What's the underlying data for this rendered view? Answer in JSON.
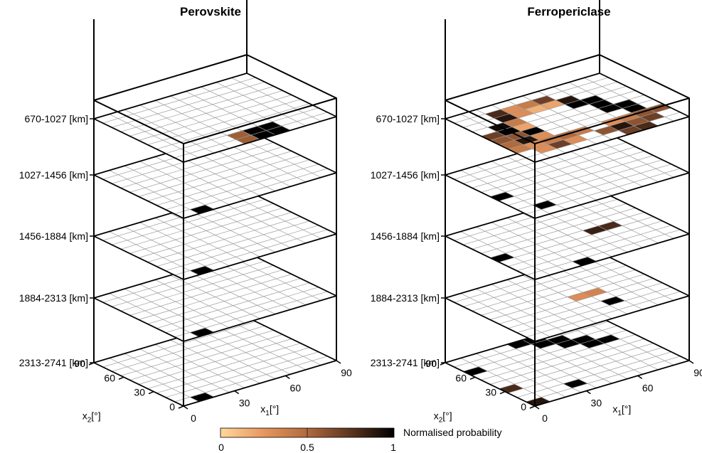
{
  "chart_data": [
    {
      "type": "heatmap",
      "title": "Perovskite",
      "xlabel": "x",
      "xlabel_sub": "1",
      "xlabel_unit": "[°]",
      "ylabel": "x",
      "ylabel_sub": "2",
      "ylabel_unit": "[°]",
      "x_ticks": [
        "0",
        "30",
        "60",
        "90"
      ],
      "y_ticks": [
        "0",
        "30",
        "60",
        "90"
      ],
      "grid_size": 10,
      "layers": [
        {
          "label": "670-1027 [km]",
          "cells": [
            [
              5,
              1,
              1.0
            ],
            [
              5,
              0,
              1.0
            ],
            [
              6,
              1,
              1.0
            ],
            [
              6,
              0,
              1.0
            ],
            [
              4,
              1,
              0.55
            ],
            [
              4,
              0,
              0.55
            ]
          ]
        },
        {
          "label": "1027-1456 [km]",
          "cells": [
            [
              1,
              0,
              1.0
            ]
          ]
        },
        {
          "label": "1456-1884 [km]",
          "cells": [
            [
              1,
              0,
              1.0
            ]
          ]
        },
        {
          "label": "1884-2313 [km]",
          "cells": [
            [
              1,
              0,
              1.0
            ]
          ]
        },
        {
          "label": "2313-2741 [km]",
          "cells": [
            [
              1,
              0,
              1.0
            ]
          ]
        }
      ]
    },
    {
      "type": "heatmap",
      "title": "Ferropericlase",
      "xlabel": "x",
      "xlabel_sub": "1",
      "xlabel_unit": "[°]",
      "ylabel": "x",
      "ylabel_sub": "2",
      "ylabel_unit": "[°]",
      "x_ticks": [
        "0",
        "30",
        "60",
        "90"
      ],
      "y_ticks": [
        "0",
        "30",
        "60",
        "90"
      ],
      "grid_size": 10,
      "layers": [
        {
          "label": "670-1027 [km]",
          "cells": [
            [
              2,
              8,
              0.8
            ],
            [
              3,
              8,
              0.3
            ],
            [
              4,
              8,
              0.4
            ],
            [
              5,
              8,
              0.7
            ],
            [
              2,
              7,
              0.9
            ],
            [
              3,
              7,
              0.3
            ],
            [
              4,
              7,
              0.15
            ],
            [
              5,
              7,
              0.2
            ],
            [
              6,
              7,
              0.9
            ],
            [
              1,
              6,
              0.95
            ],
            [
              2,
              6,
              0.4
            ],
            [
              6,
              6,
              1.0
            ],
            [
              7,
              6,
              1.0
            ],
            [
              0,
              5,
              0.7
            ],
            [
              1,
              5,
              1.0
            ],
            [
              2,
              5,
              0.2
            ],
            [
              7,
              5,
              1.0
            ],
            [
              0,
              4,
              0.6
            ],
            [
              1,
              4,
              0.6
            ],
            [
              2,
              4,
              1.0
            ],
            [
              7,
              4,
              1.0
            ],
            [
              8,
              4,
              1.0
            ],
            [
              0,
              3,
              0.5
            ],
            [
              1,
              3,
              0.9
            ],
            [
              2,
              3,
              0.3
            ],
            [
              8,
              3,
              1.0
            ],
            [
              0,
              2,
              0.4
            ],
            [
              1,
              2,
              0.3
            ],
            [
              2,
              2,
              0.4
            ],
            [
              3,
              2,
              0.5
            ],
            [
              4,
              2,
              0.4
            ],
            [
              6,
              2,
              0.3
            ],
            [
              7,
              2,
              0.4
            ],
            [
              8,
              2,
              0.6
            ],
            [
              9,
              2,
              0.6
            ],
            [
              1,
              1,
              0.3
            ],
            [
              2,
              1,
              0.7
            ],
            [
              3,
              1,
              0.3
            ],
            [
              5,
              1,
              0.6
            ],
            [
              6,
              1,
              0.9
            ],
            [
              7,
              1,
              0.6
            ],
            [
              8,
              1,
              0.7
            ],
            [
              6,
              0,
              0.7
            ],
            [
              7,
              0,
              0.8
            ]
          ]
        },
        {
          "label": "1027-1456 [km]",
          "cells": [
            [
              0,
              4,
              1.0
            ],
            [
              1,
              1,
              1.0
            ]
          ]
        },
        {
          "label": "1456-1884 [km]",
          "cells": [
            [
              0,
              4,
              1.0
            ],
            [
              6,
              4,
              0.85
            ],
            [
              7,
              4,
              0.8
            ],
            [
              3,
              0,
              1.0
            ]
          ]
        },
        {
          "label": "1884-2313 [km]",
          "cells": [
            [
              5,
              4,
              0.3
            ],
            [
              6,
              4,
              0.35
            ],
            [
              6,
              2,
              1.0
            ]
          ]
        },
        {
          "label": "2313-2741 [km]",
          "cells": [
            [
              0,
              7,
              1.0
            ],
            [
              0,
              3,
              0.8
            ],
            [
              0,
              0,
              0.9
            ],
            [
              4,
              9,
              1.0
            ],
            [
              5,
              9,
              1.0
            ],
            [
              5,
              8,
              1.0
            ],
            [
              6,
              8,
              1.0
            ],
            [
              6,
              7,
              1.0
            ],
            [
              7,
              7,
              1.0
            ],
            [
              7,
              6,
              1.0
            ],
            [
              8,
              6,
              1.0
            ],
            [
              3,
              1,
              1.0
            ]
          ]
        }
      ]
    }
  ],
  "colorbar": {
    "label": "Normalised probability",
    "ticks": [
      "0",
      "0.5",
      "1"
    ],
    "colors": [
      "#ffd89c",
      "#e8965e",
      "#b06a3c",
      "#5c3420",
      "#000000"
    ]
  }
}
